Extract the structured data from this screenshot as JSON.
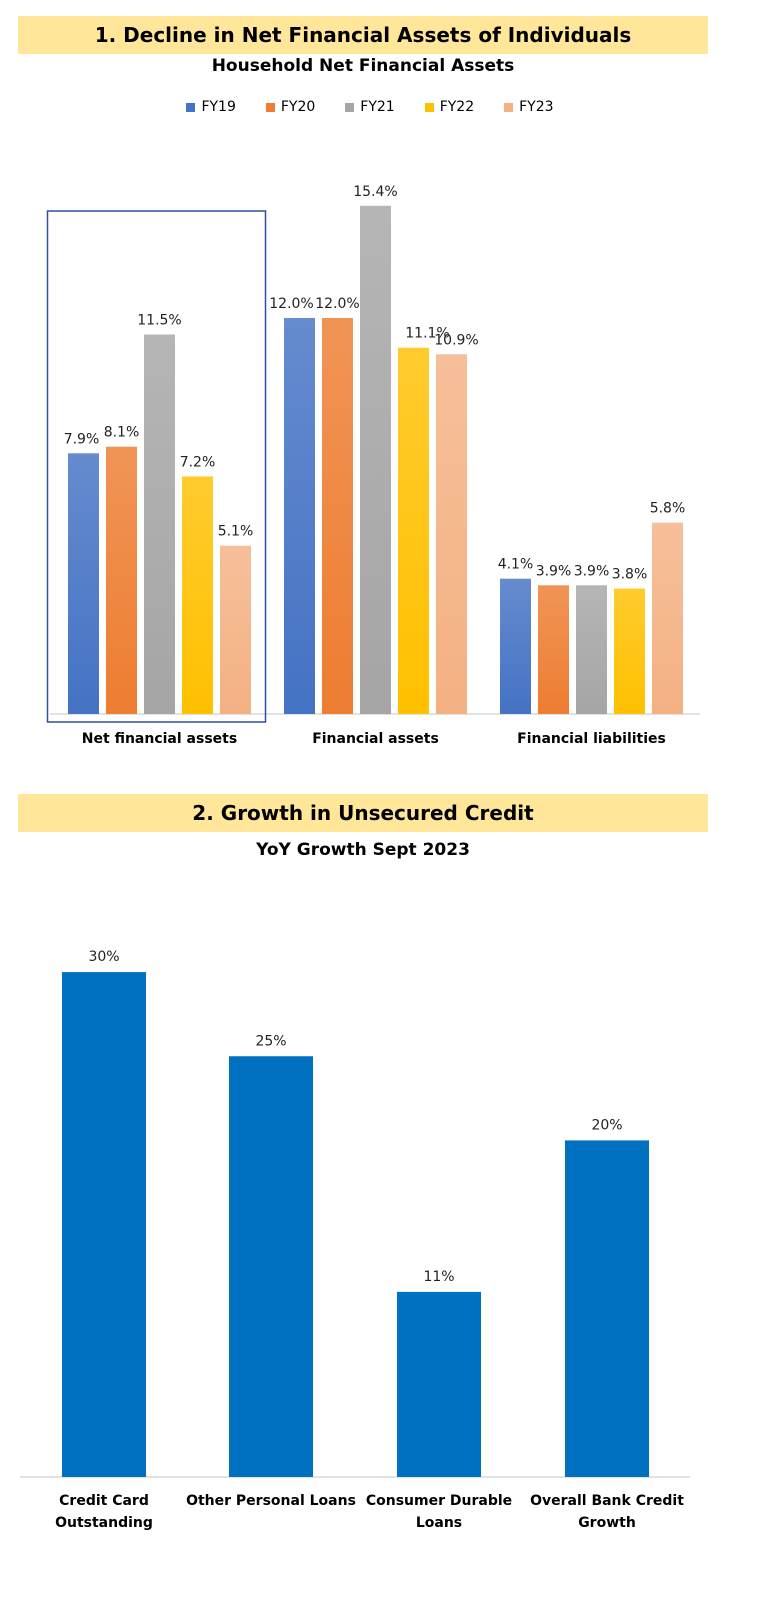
{
  "section1": {
    "banner": "1. Decline in Net Financial Assets of Individuals"
  },
  "section2": {
    "banner": "2. Growth in Unsecured Credit"
  },
  "colors": {
    "FY19": "#4472c4",
    "FY20": "#ed7d31",
    "FY21": "#a5a5a5",
    "FY22": "#ffc000",
    "FY23": "#f4b183",
    "credit_bar": "#0070c0",
    "banner": "#ffe699",
    "highlight_box": "#2f4fa6"
  },
  "chart_data": [
    {
      "type": "bar",
      "title": "Household Net Financial Assets",
      "categories": [
        "Net financial assets",
        "Financial assets",
        "Financial liabilities"
      ],
      "series": [
        {
          "name": "FY19",
          "values": [
            7.9,
            12.0,
            4.1
          ],
          "labels": [
            "7.9%",
            "12.0%",
            "4.1%"
          ]
        },
        {
          "name": "FY20",
          "values": [
            8.1,
            12.0,
            3.9
          ],
          "labels": [
            "8.1%",
            "12.0%",
            "3.9%"
          ]
        },
        {
          "name": "FY21",
          "values": [
            11.5,
            15.4,
            3.9
          ],
          "labels": [
            "11.5%",
            "15.4%",
            "3.9%"
          ]
        },
        {
          "name": "FY22",
          "values": [
            7.2,
            11.1,
            3.8
          ],
          "labels": [
            "7.2%",
            "11.1%",
            "3.8%"
          ]
        },
        {
          "name": "FY23",
          "values": [
            5.1,
            10.9,
            5.8
          ],
          "labels": [
            "5.1%",
            "10.9%",
            "5.8%"
          ]
        }
      ],
      "legend": "top-center",
      "grid": false,
      "highlighted_category": "Net financial assets"
    },
    {
      "type": "bar",
      "title": "YoY Growth Sept 2023",
      "categories": [
        [
          "Credit Card",
          "Outstanding"
        ],
        [
          "Other Personal Loans"
        ],
        [
          "Consumer Durable",
          "Loans"
        ],
        [
          "Overall Bank Credit",
          "Growth"
        ]
      ],
      "values": [
        30,
        25,
        11,
        20
      ],
      "labels": [
        "30%",
        "25%",
        "11%",
        "20%"
      ],
      "grid": false
    }
  ]
}
